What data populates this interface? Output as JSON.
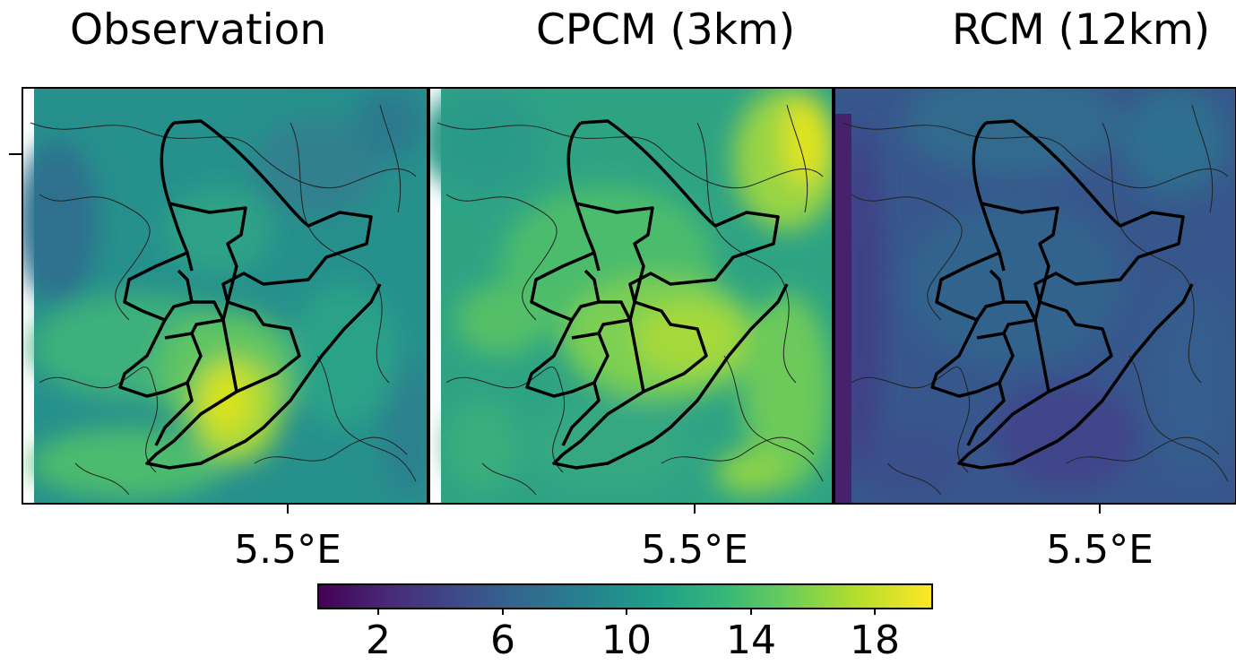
{
  "panels": [
    {
      "title": "Observation",
      "xtick_label": "5.5°E"
    },
    {
      "title": "CPCM (3km)",
      "xtick_label": "5.5°E"
    },
    {
      "title": "RCM (12km)",
      "xtick_label": "5.5°E"
    }
  ],
  "colorbar": {
    "colormap": "viridis",
    "ticks": [
      "2",
      "6",
      "10",
      "14",
      "18"
    ],
    "colors": [
      "#440154",
      "#482878",
      "#3e4989",
      "#31688e",
      "#26828e",
      "#1f9e89",
      "#35b779",
      "#6ece58",
      "#b5de2b",
      "#fde725"
    ]
  }
}
